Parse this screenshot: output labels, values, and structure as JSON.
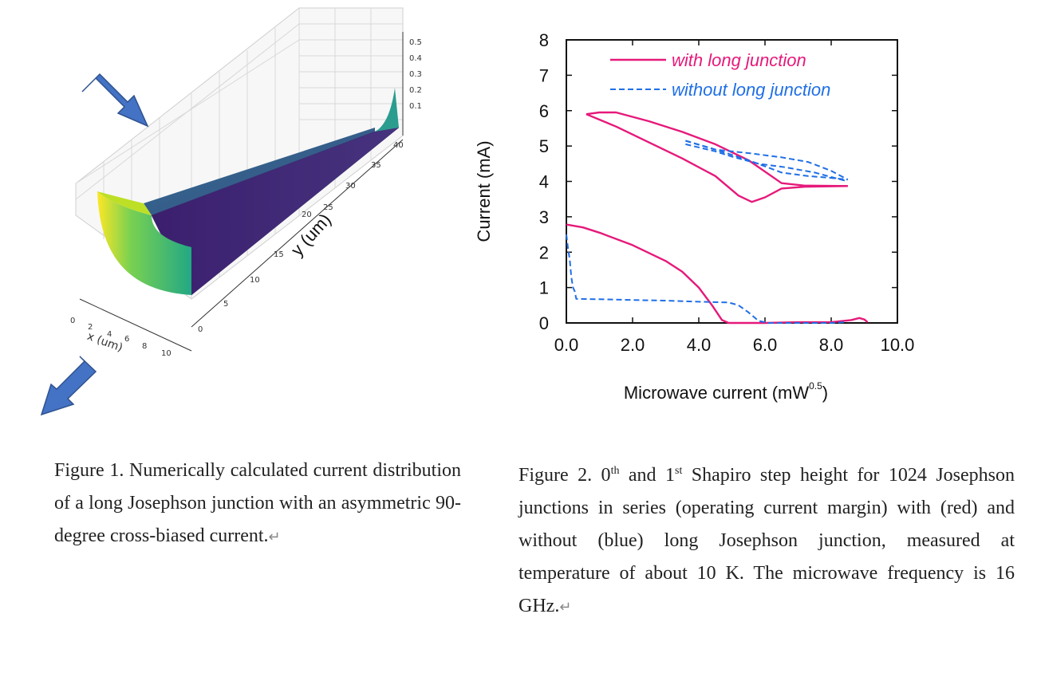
{
  "figure1": {
    "z_ticks": [
      "0.5",
      "0.4",
      "0.3",
      "0.2",
      "0.1"
    ],
    "y_ticks": [
      "0",
      "5",
      "10",
      "15",
      "20",
      "25",
      "30",
      "35",
      "40"
    ],
    "y_label": "y (um)",
    "x_ticks": [
      "0",
      "2",
      "4",
      "6",
      "8",
      "10"
    ],
    "x_label": "x (um)",
    "arrow_color": "#4472C4"
  },
  "figure2": {
    "chart_data": {
      "type": "line",
      "xlabel": "Microwave current (mW",
      "xlabel_sup": "0.5",
      "xlabel_tail": ")",
      "ylabel": "Current (mA)",
      "xlim": [
        0,
        10
      ],
      "ylim": [
        0,
        8
      ],
      "x_tick_labels": [
        "0.0",
        "2.0",
        "4.0",
        "6.0",
        "8.0",
        "10.0"
      ],
      "y_tick_labels": [
        "0",
        "1",
        "2",
        "3",
        "4",
        "5",
        "6",
        "7",
        "8"
      ],
      "legend_position": "top-right",
      "series": [
        {
          "name": "with long junction",
          "color": "#E6197A",
          "style": "solid",
          "segments": [
            [
              [
                0.6,
                5.9
              ],
              [
                1.0,
                5.95
              ],
              [
                1.5,
                5.95
              ],
              [
                2.5,
                5.7
              ],
              [
                3.5,
                5.4
              ],
              [
                4.5,
                5.05
              ],
              [
                5.5,
                4.6
              ],
              [
                6.5,
                3.95
              ],
              [
                7.2,
                3.88
              ],
              [
                8.5,
                3.87
              ]
            ],
            [
              [
                0.6,
                5.9
              ],
              [
                1.5,
                5.55
              ],
              [
                2.5,
                5.1
              ],
              [
                3.5,
                4.65
              ],
              [
                4.5,
                4.15
              ],
              [
                5.2,
                3.6
              ],
              [
                5.6,
                3.42
              ],
              [
                6.0,
                3.55
              ],
              [
                6.5,
                3.8
              ],
              [
                7.2,
                3.85
              ],
              [
                8.5,
                3.87
              ]
            ],
            [
              [
                0.0,
                2.78
              ],
              [
                0.5,
                2.7
              ],
              [
                1.0,
                2.55
              ],
              [
                2.0,
                2.2
              ],
              [
                3.0,
                1.75
              ],
              [
                3.5,
                1.45
              ],
              [
                4.0,
                1.0
              ],
              [
                4.4,
                0.5
              ],
              [
                4.7,
                0.08
              ],
              [
                4.9,
                0.0
              ],
              [
                6.0,
                0.0
              ],
              [
                7.0,
                0.02
              ],
              [
                8.0,
                0.02
              ],
              [
                8.6,
                0.08
              ],
              [
                8.85,
                0.14
              ],
              [
                9.0,
                0.1
              ],
              [
                9.1,
                0.02
              ]
            ]
          ]
        },
        {
          "name": "without long junction",
          "color": "#1F6FE6",
          "style": "dashed",
          "segments": [
            [
              [
                3.6,
                5.15
              ],
              [
                4.5,
                4.9
              ],
              [
                5.5,
                4.8
              ],
              [
                6.5,
                4.68
              ],
              [
                7.3,
                4.55
              ],
              [
                8.0,
                4.3
              ],
              [
                8.5,
                4.05
              ]
            ],
            [
              [
                3.6,
                5.15
              ],
              [
                4.5,
                4.9
              ],
              [
                5.5,
                4.6
              ],
              [
                6.5,
                4.25
              ],
              [
                7.3,
                4.15
              ],
              [
                8.0,
                4.1
              ],
              [
                8.5,
                4.05
              ]
            ],
            [
              [
                3.6,
                5.05
              ],
              [
                4.5,
                4.85
              ],
              [
                5.0,
                4.7
              ],
              [
                5.8,
                4.5
              ],
              [
                6.6,
                4.4
              ],
              [
                7.5,
                4.25
              ],
              [
                8.5,
                4.0
              ]
            ],
            [
              [
                0.0,
                2.5
              ],
              [
                0.05,
                2.1
              ],
              [
                0.1,
                1.8
              ],
              [
                0.15,
                1.3
              ],
              [
                0.2,
                1.0
              ],
              [
                0.25,
                0.9
              ],
              [
                0.3,
                0.68
              ],
              [
                1.0,
                0.67
              ],
              [
                2.0,
                0.65
              ],
              [
                3.0,
                0.63
              ],
              [
                4.0,
                0.6
              ],
              [
                4.9,
                0.58
              ],
              [
                5.2,
                0.5
              ],
              [
                5.5,
                0.3
              ],
              [
                5.8,
                0.06
              ],
              [
                6.1,
                0.0
              ],
              [
                7.0,
                0.0
              ],
              [
                8.0,
                0.0
              ],
              [
                8.4,
                0.02
              ]
            ]
          ]
        }
      ]
    }
  },
  "captions": {
    "fig1": "Figure 1. Numerically calculated current distribution of a long Josephson junction with an asymmetric 90-degree cross-biased current.",
    "fig2_part1": "Figure 2. 0",
    "fig2_sup1": "th",
    "fig2_part2": " and 1",
    "fig2_sup2": "st",
    "fig2_part3": " Shapiro step height for 1024 Josephson junctions in series (operating current margin) with (red) and without (blue) long Josephson junction, measured at temperature of about 10 K. The microwave frequency is 16 GHz.",
    "return_mark": "↵"
  }
}
